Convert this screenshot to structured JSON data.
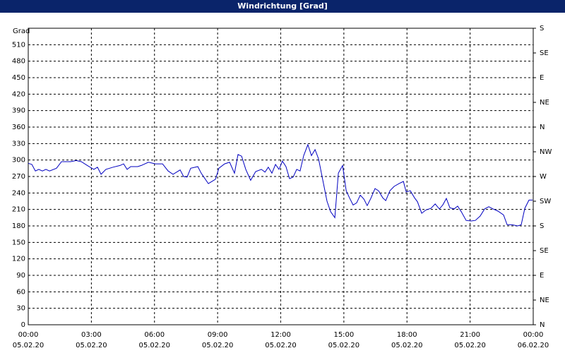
{
  "chart_data": {
    "type": "line",
    "title": "Windrichtung [Grad]",
    "y_label": "Grad",
    "x": [
      0,
      0.17,
      0.34,
      0.5,
      0.67,
      0.84,
      1.01,
      1.34,
      1.58,
      2.01,
      2.28,
      2.52,
      2.85,
      3.12,
      3.29,
      3.46,
      3.69,
      4.03,
      4.36,
      4.53,
      4.7,
      4.87,
      5.2,
      5.37,
      5.71,
      6.04,
      6.38,
      6.65,
      6.88,
      7.22,
      7.38,
      7.55,
      7.72,
      8.06,
      8.22,
      8.56,
      8.9,
      9.06,
      9.33,
      9.57,
      9.8,
      9.97,
      10.14,
      10.34,
      10.57,
      10.81,
      11.08,
      11.25,
      11.41,
      11.58,
      11.75,
      11.92,
      12.08,
      12.25,
      12.42,
      12.59,
      12.76,
      12.92,
      13.09,
      13.29,
      13.46,
      13.63,
      13.8,
      14,
      14.2,
      14.37,
      14.57,
      14.74,
      14.94,
      15.11,
      15.27,
      15.44,
      15.61,
      15.78,
      15.95,
      16.11,
      16.28,
      16.48,
      16.65,
      16.85,
      16.99,
      17.19,
      17.39,
      17.62,
      17.83,
      17.96,
      18.16,
      18.36,
      18.5,
      18.7,
      18.9,
      19.14,
      19.34,
      19.54,
      19.7,
      19.87,
      20.04,
      20.24,
      20.41,
      20.58,
      20.81,
      21.05,
      21.25,
      21.48,
      21.69,
      21.89,
      22.09,
      22.32,
      22.59,
      22.76,
      23,
      23.26,
      23.43,
      23.6,
      23.8,
      23.97
    ],
    "series": [
      {
        "name": "Windrichtung",
        "color": "#0000c0",
        "values": [
          294,
          292,
          280,
          283,
          280,
          283,
          280,
          285,
          297,
          297,
          299,
          297,
          289,
          283,
          287,
          274,
          283,
          287,
          290,
          293,
          283,
          288,
          288,
          290,
          296,
          293,
          293,
          280,
          274,
          282,
          270,
          269,
          285,
          288,
          276,
          257,
          265,
          285,
          293,
          296,
          276,
          310,
          307,
          283,
          263,
          279,
          283,
          278,
          287,
          276,
          292,
          283,
          298,
          288,
          266,
          269,
          283,
          280,
          308,
          328,
          308,
          319,
          302,
          263,
          225,
          206,
          195,
          276,
          290,
          244,
          231,
          218,
          222,
          236,
          229,
          217,
          230,
          248,
          244,
          231,
          226,
          244,
          252,
          257,
          261,
          242,
          244,
          231,
          224,
          203,
          209,
          212,
          220,
          211,
          218,
          230,
          213,
          211,
          216,
          206,
          190,
          189,
          190,
          198,
          211,
          215,
          211,
          207,
          200,
          182,
          182,
          180,
          182,
          212,
          227,
          227
        ]
      }
    ],
    "xlim": [
      0,
      24
    ],
    "xticks": [
      {
        "value": 0,
        "label": "00:00"
      },
      {
        "value": 3,
        "label": "03:00"
      },
      {
        "value": 6,
        "label": "06:00"
      },
      {
        "value": 9,
        "label": "09:00"
      },
      {
        "value": 12,
        "label": "12:00"
      },
      {
        "value": 15,
        "label": "15:00"
      },
      {
        "value": 18,
        "label": "18:00"
      },
      {
        "value": 21,
        "label": "21:00"
      },
      {
        "value": 24,
        "label": "00:00"
      }
    ],
    "xtick_dates": [
      "05.02.20",
      "05.02.20",
      "05.02.20",
      "05.02.20",
      "05.02.20",
      "05.02.20",
      "05.02.20",
      "05.02.20",
      "06.02.20"
    ],
    "ylim": [
      0,
      540
    ],
    "yticks": [
      0,
      30,
      60,
      90,
      120,
      150,
      180,
      210,
      240,
      270,
      300,
      330,
      360,
      390,
      420,
      450,
      480,
      510
    ],
    "y2lim": [
      0,
      540
    ],
    "y2ticks": [
      {
        "value": 0,
        "label": "N"
      },
      {
        "value": 45,
        "label": "NE"
      },
      {
        "value": 90,
        "label": "E"
      },
      {
        "value": 135,
        "label": "SE"
      },
      {
        "value": 180,
        "label": "S"
      },
      {
        "value": 225,
        "label": "SW"
      },
      {
        "value": 270,
        "label": "W"
      },
      {
        "value": 315,
        "label": "NW"
      },
      {
        "value": 360,
        "label": "N"
      },
      {
        "value": 405,
        "label": "NE"
      },
      {
        "value": 450,
        "label": "E"
      },
      {
        "value": 495,
        "label": "SE"
      },
      {
        "value": 540,
        "label": "S"
      }
    ],
    "grid": true
  }
}
